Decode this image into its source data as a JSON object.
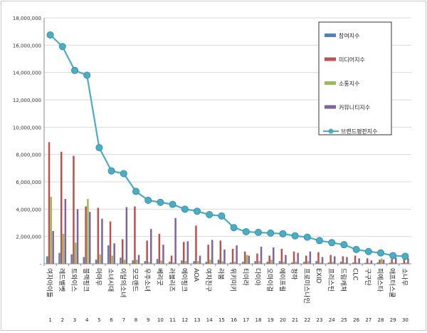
{
  "chart_data": {
    "type": "bar",
    "title": "",
    "xlabel": "",
    "ylabel": "",
    "ylim": [
      0,
      18000000
    ],
    "yticks": [
      0,
      2000000,
      4000000,
      6000000,
      8000000,
      10000000,
      12000000,
      14000000,
      16000000,
      18000000
    ],
    "ytick_labels": [
      "-",
      "2,000,000",
      "4,000,000",
      "6,000,000",
      "8,000,000",
      "10,000,000",
      "12,000,000",
      "14,000,000",
      "16,000,000",
      "18,000,000"
    ],
    "grid": true,
    "legend_position": "right",
    "ranks": [
      "1",
      "2",
      "3",
      "4",
      "5",
      "6",
      "7",
      "8",
      "9",
      "10",
      "11",
      "12",
      "13",
      "14",
      "15",
      "16",
      "17",
      "18",
      "19",
      "20",
      "21",
      "22",
      "23",
      "24",
      "25",
      "26",
      "27",
      "28",
      "29",
      "30"
    ],
    "categories": [
      "여자아이들",
      "레드벨벳",
      "트와이스",
      "블랙핑크",
      "마마무",
      "소녀시대",
      "이달의소녀",
      "모모랜드",
      "우주소녀",
      "베리굿",
      "러블리즈",
      "에이핑크",
      "AOA",
      "여자친구",
      "라붐",
      "위키미키",
      "티아라",
      "다이아",
      "오마이걸",
      "에이프릴",
      "청하",
      "프로미스나인",
      "EXID",
      "프리스틴",
      "드림캐쳐",
      "CLC",
      "구구단",
      "피에스타",
      "애프터스쿨",
      "소나무"
    ],
    "series": [
      {
        "name": "참여지수",
        "color": "#4f81bd",
        "kind": "bar",
        "values": [
          550000,
          800000,
          700000,
          500000,
          300000,
          1350000,
          450000,
          250000,
          200000,
          350000,
          150000,
          250000,
          200000,
          150000,
          300000,
          100000,
          150000,
          200000,
          150000,
          200000,
          100000,
          150000,
          200000,
          100000,
          150000,
          100000,
          80000,
          100000,
          80000,
          50000
        ]
      },
      {
        "name": "미디어지수",
        "color": "#c0504d",
        "kind": "bar",
        "values": [
          8900000,
          8200000,
          7900000,
          4200000,
          4100000,
          3100000,
          1800000,
          4200000,
          1700000,
          2200000,
          600000,
          1600000,
          2800000,
          1400000,
          1700000,
          1100000,
          900000,
          750000,
          600000,
          1100000,
          900000,
          600000,
          850000,
          650000,
          550000,
          600000,
          400000,
          300000,
          350000,
          450000
        ]
      },
      {
        "name": "소통지수",
        "color": "#9bbb59",
        "kind": "bar",
        "values": [
          4900000,
          2200000,
          1550000,
          4750000,
          700000,
          600000,
          300000,
          300000,
          150000,
          250000,
          100000,
          200000,
          200000,
          300000,
          200000,
          150000,
          650000,
          200000,
          300000,
          150000,
          150000,
          200000,
          100000,
          150000,
          100000,
          100000,
          80000,
          400000,
          100000,
          100000
        ]
      },
      {
        "name": "커뮤니티지수",
        "color": "#8064a2",
        "kind": "bar",
        "values": [
          2400000,
          4750000,
          4000000,
          3800000,
          3300000,
          1500000,
          4150000,
          650000,
          2550000,
          1400000,
          3350000,
          1650000,
          600000,
          1750000,
          1050000,
          1350000,
          600000,
          1250000,
          1200000,
          650000,
          800000,
          900000,
          500000,
          550000,
          500000,
          400000,
          250000,
          300000,
          450000,
          400000
        ]
      },
      {
        "name": "브랜드평판지수",
        "color": "#4bacc6",
        "kind": "line",
        "values": [
          16750000,
          15900000,
          14150000,
          13800000,
          8500000,
          6800000,
          6600000,
          5300000,
          4650000,
          4500000,
          4350000,
          4000000,
          3850000,
          3600000,
          3500000,
          2650000,
          2350000,
          2300000,
          2250000,
          2200000,
          2050000,
          1950000,
          1700000,
          1550000,
          1400000,
          1050000,
          900000,
          800000,
          600000,
          550000
        ]
      }
    ]
  }
}
